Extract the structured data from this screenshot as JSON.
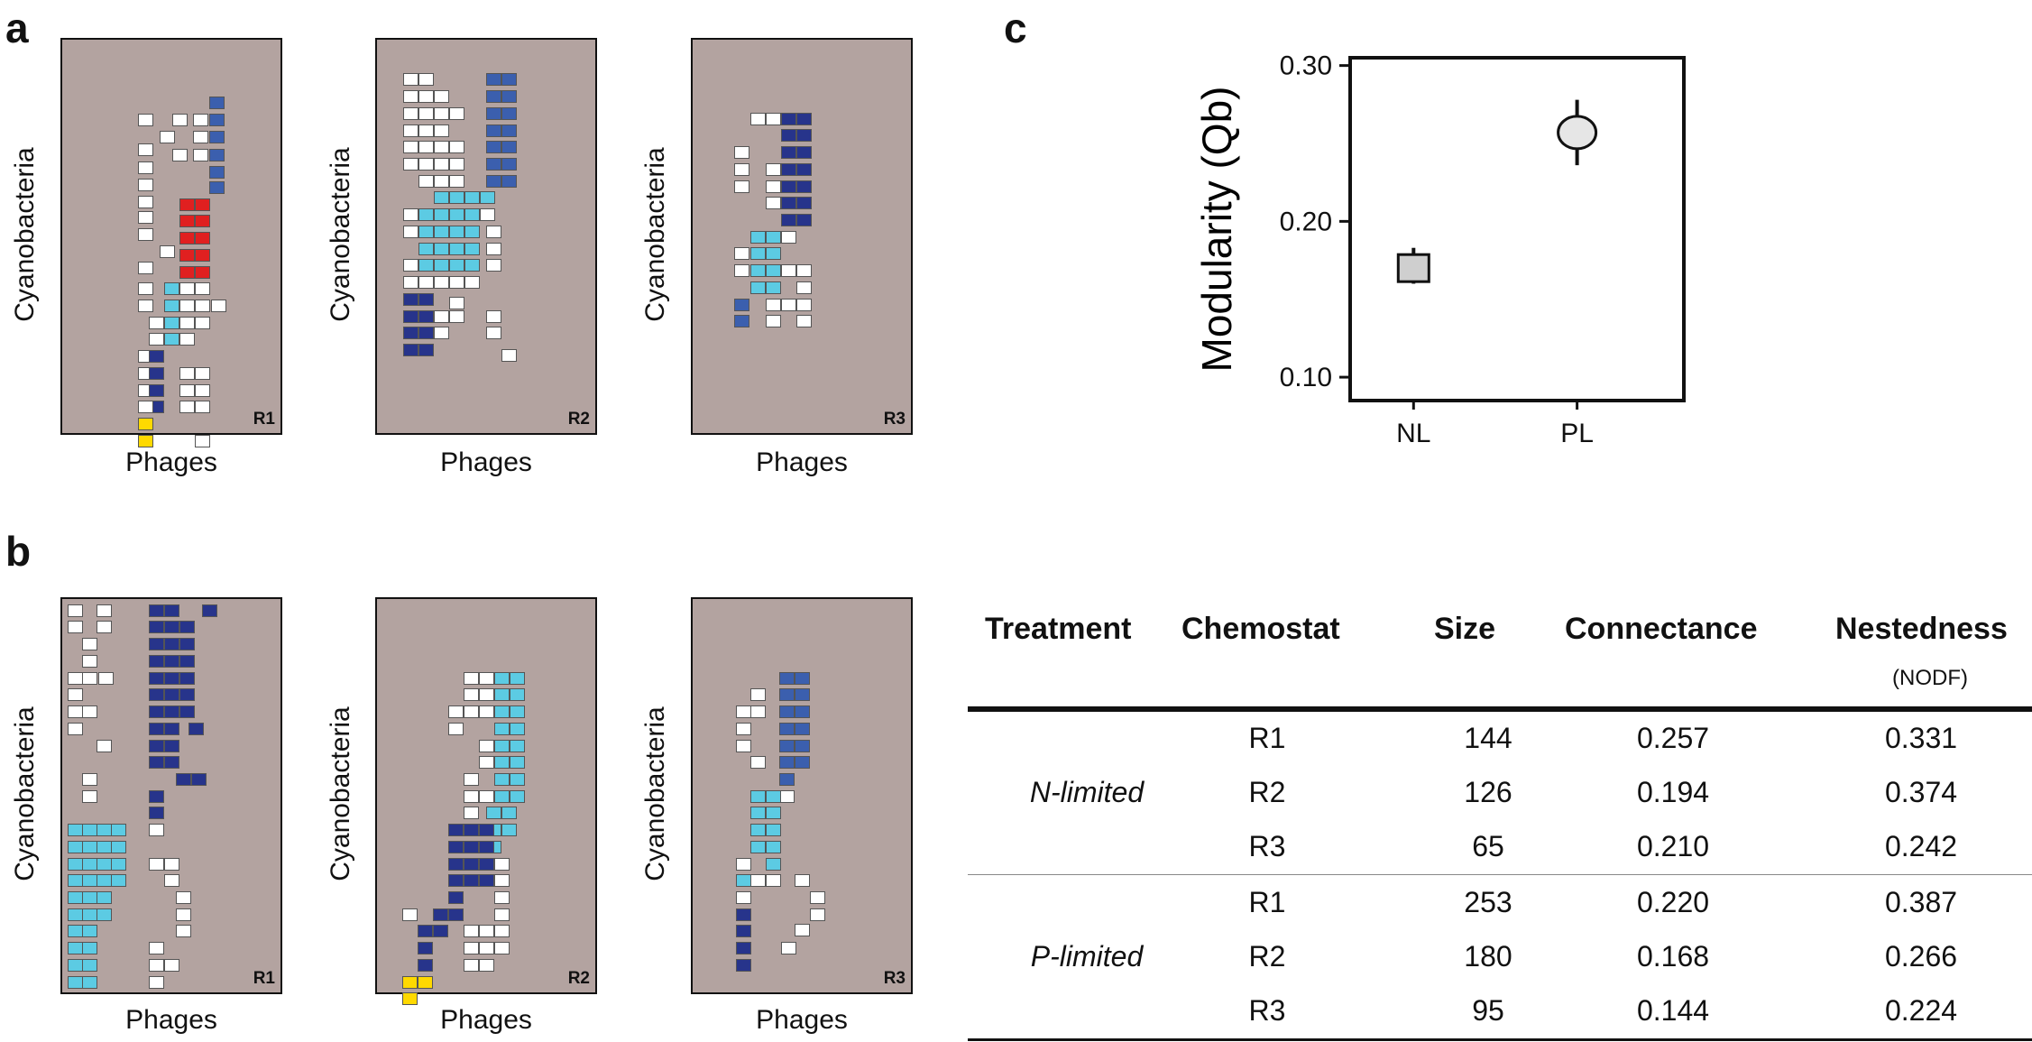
{
  "panels": {
    "a": "a",
    "b": "b",
    "c": "c"
  },
  "matrix_axis": {
    "x": "Phages",
    "y": "Cyanobacteria"
  },
  "colors": {
    "background": "#b3a3a0",
    "white": "#ffffff",
    "red": "#e02020",
    "cyan": "#5ccbe3",
    "navy": "#27348b",
    "blue": "#3b5fae",
    "yellow": "#ffd900"
  },
  "matrices_a": [
    {
      "label": "R1"
    },
    {
      "label": "R2"
    },
    {
      "label": "R3"
    }
  ],
  "matrices_b": [
    {
      "label": "R1"
    },
    {
      "label": "R2"
    },
    {
      "label": "R3"
    }
  ],
  "chart_data": {
    "type": "scatter",
    "ylabel": "Modularity (Qb)",
    "xlabel": "",
    "categories": [
      "NL",
      "PL"
    ],
    "ylim": [
      0.085,
      0.305
    ],
    "yticks": [
      "0.10",
      "0.20",
      "0.30"
    ],
    "points": [
      {
        "category": "NL",
        "value": 0.17,
        "err_low": 0.16,
        "err_high": 0.183,
        "marker": "square"
      },
      {
        "category": "PL",
        "value": 0.257,
        "err_low": 0.236,
        "err_high": 0.278,
        "marker": "circle"
      }
    ],
    "grid": false
  },
  "table": {
    "headers": [
      "Treatment",
      "Chemostat",
      "Size",
      "Connectance",
      "Nestedness"
    ],
    "subheader": "(NODF)",
    "groups": [
      {
        "treatment": "N-limited",
        "rows": [
          [
            "R1",
            "144",
            "0.257",
            "0.331"
          ],
          [
            "R2",
            "126",
            "0.194",
            "0.374"
          ],
          [
            "R3",
            "65",
            "0.210",
            "0.242"
          ]
        ]
      },
      {
        "treatment": "P-limited",
        "rows": [
          [
            "R1",
            "253",
            "0.220",
            "0.387"
          ],
          [
            "R2",
            "180",
            "0.168",
            "0.266"
          ],
          [
            "R3",
            "95",
            "0.144",
            "0.224"
          ]
        ]
      }
    ]
  }
}
